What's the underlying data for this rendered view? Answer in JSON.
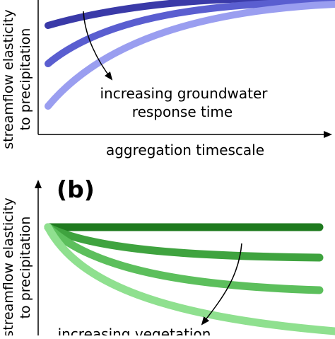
{
  "panel_a": {
    "y_axis_label_line1": "streamflow elasticity",
    "y_axis_label_line2": "to precipitation",
    "x_axis_label": "aggregation timescale",
    "annotation_line1": "increasing groundwater",
    "annotation_line2": "response time",
    "colors": [
      "#3a3aa8",
      "#5a5ed0",
      "#9a9ef0"
    ]
  },
  "panel_b": {
    "panel_label": "(b)",
    "y_axis_label_line1": "streamflow elasticity",
    "y_axis_label_line2": "to precipitation",
    "annotation_text": "increasing vegetation",
    "colors": [
      "#1f7a1f",
      "#3fa33f",
      "#5cbf5c",
      "#8fe08f"
    ]
  }
}
